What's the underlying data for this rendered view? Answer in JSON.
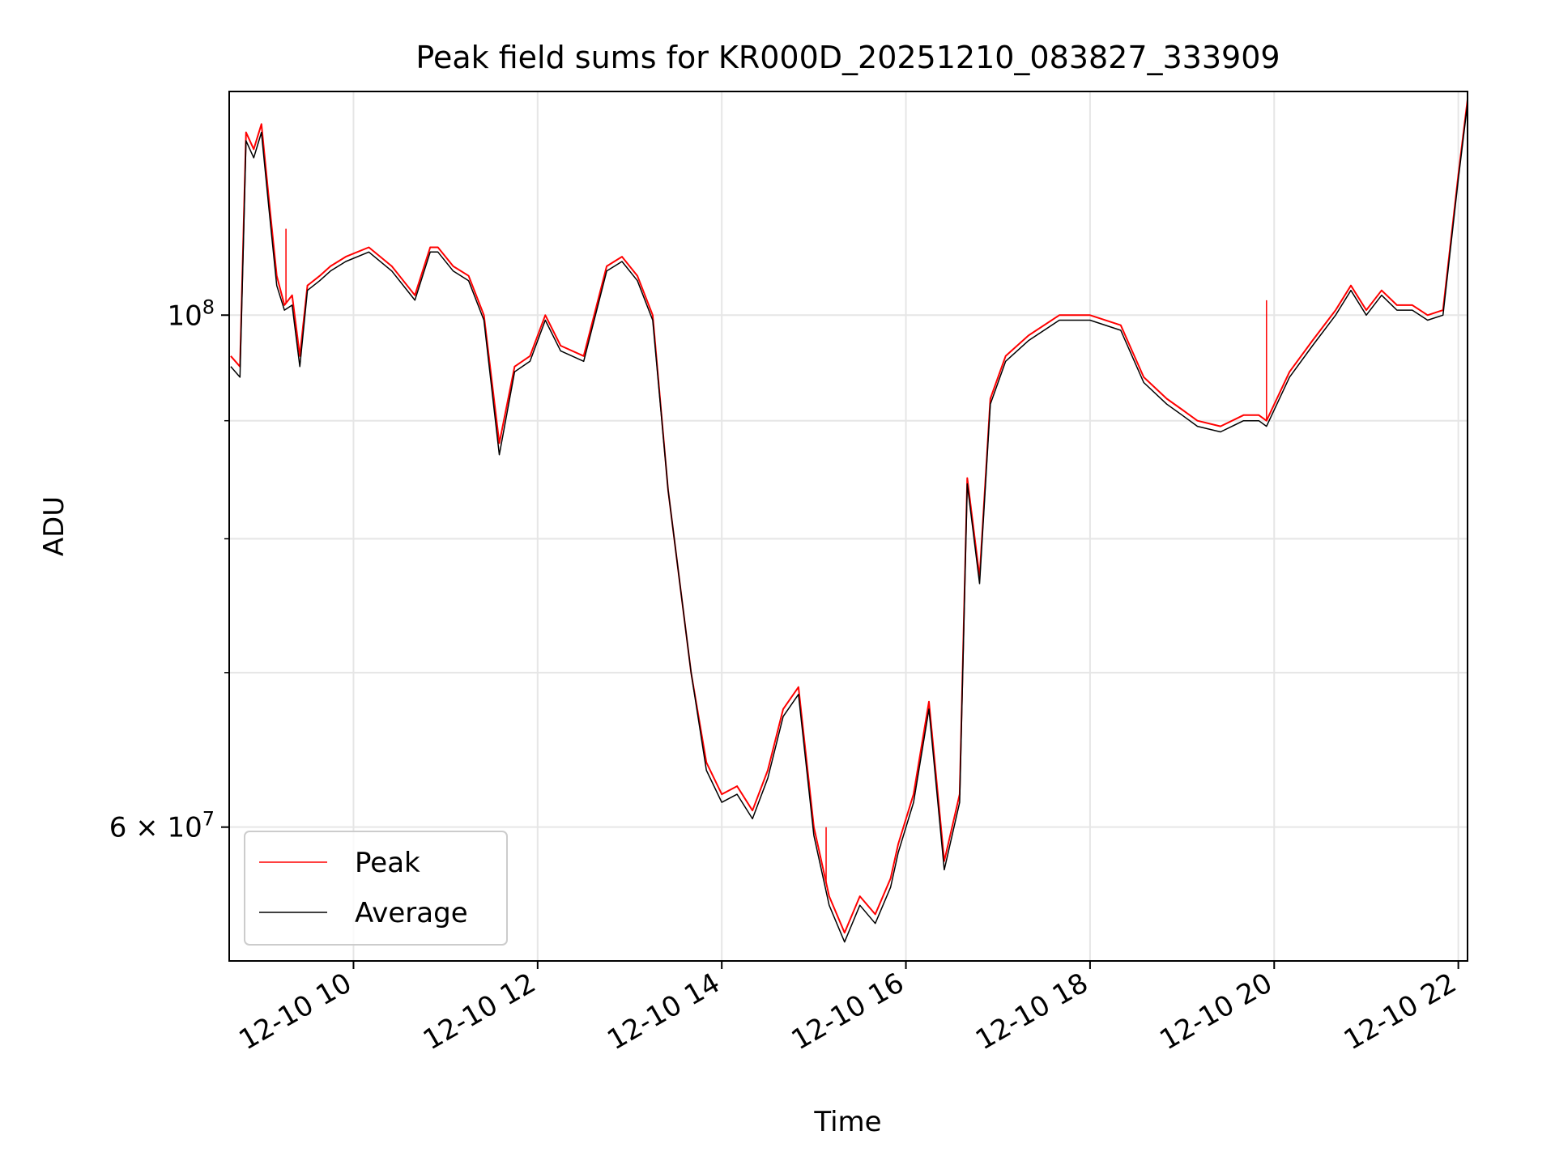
{
  "chart_data": {
    "type": "line",
    "title": "Peak field sums for KR000D_20251210_083827_333909",
    "xlabel": "Time",
    "ylabel": "ADU",
    "xlim": [
      "2025-12-10 08:39",
      "2025-12-10 22:06"
    ],
    "ylim": [
      52500000,
      125000000
    ],
    "yscale": "log",
    "grid": true,
    "legend_position": "lower-left",
    "x_ticks": [
      {
        "value": "2025-12-10 10:00",
        "label": "12-10 10"
      },
      {
        "value": "2025-12-10 12:00",
        "label": "12-10 12"
      },
      {
        "value": "2025-12-10 14:00",
        "label": "12-10 14"
      },
      {
        "value": "2025-12-10 16:00",
        "label": "12-10 16"
      },
      {
        "value": "2025-12-10 18:00",
        "label": "12-10 18"
      },
      {
        "value": "2025-12-10 20:00",
        "label": "12-10 20"
      },
      {
        "value": "2025-12-10 22:00",
        "label": "12-10 22"
      }
    ],
    "y_major_ticks": [
      {
        "value": 60000000,
        "base": "6",
        "exp": "7",
        "label": "6 × 10^7"
      },
      {
        "value": 100000000,
        "base": "10",
        "exp": "8",
        "label": "10^8"
      }
    ],
    "y_minor_ticks": [
      70000000,
      80000000,
      90000000
    ],
    "series": [
      {
        "name": "Peak",
        "color": "#ff0000",
        "x": [
          "2025-12-10 08:40",
          "2025-12-10 08:46",
          "2025-12-10 08:50",
          "2025-12-10 08:55",
          "2025-12-10 09:00",
          "2025-12-10 09:05",
          "2025-12-10 09:10",
          "2025-12-10 09:15",
          "2025-12-10 09:20",
          "2025-12-10 09:25",
          "2025-12-10 09:30",
          "2025-12-10 09:38",
          "2025-12-10 09:45",
          "2025-12-10 09:55",
          "2025-12-10 10:10",
          "2025-12-10 10:25",
          "2025-12-10 10:40",
          "2025-12-10 10:50",
          "2025-12-10 10:55",
          "2025-12-10 11:05",
          "2025-12-10 11:15",
          "2025-12-10 11:25",
          "2025-12-10 11:35",
          "2025-12-10 11:45",
          "2025-12-10 11:55",
          "2025-12-10 12:05",
          "2025-12-10 12:15",
          "2025-12-10 12:30",
          "2025-12-10 12:45",
          "2025-12-10 12:55",
          "2025-12-10 13:05",
          "2025-12-10 13:15",
          "2025-12-10 13:25",
          "2025-12-10 13:40",
          "2025-12-10 13:50",
          "2025-12-10 14:00",
          "2025-12-10 14:10",
          "2025-12-10 14:20",
          "2025-12-10 14:30",
          "2025-12-10 14:40",
          "2025-12-10 14:50",
          "2025-12-10 15:00",
          "2025-12-10 15:10",
          "2025-12-10 15:20",
          "2025-12-10 15:30",
          "2025-12-10 15:40",
          "2025-12-10 15:50",
          "2025-12-10 15:55",
          "2025-12-10 16:05",
          "2025-12-10 16:15",
          "2025-12-10 16:25",
          "2025-12-10 16:35",
          "2025-12-10 16:40",
          "2025-12-10 16:48",
          "2025-12-10 16:55",
          "2025-12-10 17:05",
          "2025-12-10 17:20",
          "2025-12-10 17:40",
          "2025-12-10 18:00",
          "2025-12-10 18:20",
          "2025-12-10 18:35",
          "2025-12-10 18:50",
          "2025-12-10 19:00",
          "2025-12-10 19:10",
          "2025-12-10 19:25",
          "2025-12-10 19:40",
          "2025-12-10 19:50",
          "2025-12-10 19:55",
          "2025-12-10 20:10",
          "2025-12-10 20:25",
          "2025-12-10 20:40",
          "2025-12-10 20:50",
          "2025-12-10 21:00",
          "2025-12-10 21:10",
          "2025-12-10 21:20",
          "2025-12-10 21:30",
          "2025-12-10 21:40",
          "2025-12-10 21:50",
          "2025-12-10 22:00",
          "2025-12-10 22:06"
        ],
        "values": [
          96000000,
          95000000,
          120000000,
          118000000,
          121000000,
          112000000,
          104000000,
          101000000,
          102000000,
          96000000,
          103000000,
          104000000,
          105000000,
          106000000,
          107000000,
          105000000,
          102000000,
          107000000,
          107000000,
          105000000,
          104000000,
          100000000,
          88000000,
          95000000,
          96000000,
          100000000,
          97000000,
          96000000,
          105000000,
          106000000,
          104000000,
          100000000,
          84000000,
          70000000,
          64000000,
          62000000,
          62500000,
          61000000,
          63500000,
          67500000,
          69000000,
          60000000,
          56000000,
          54000000,
          56000000,
          55000000,
          57000000,
          59000000,
          62000000,
          68000000,
          58000000,
          62000000,
          85000000,
          77000000,
          92000000,
          96000000,
          98000000,
          100000000,
          100000000,
          99000000,
          94000000,
          92000000,
          91000000,
          90000000,
          89500000,
          90500000,
          90500000,
          90000000,
          94500000,
          97500000,
          100500000,
          103000000,
          100500000,
          102500000,
          101000000,
          101000000,
          100000000,
          100500000,
          115000000,
          124000000
        ]
      },
      {
        "name": "Average",
        "color": "#000000",
        "x": [
          "2025-12-10 08:40",
          "2025-12-10 08:46",
          "2025-12-10 08:50",
          "2025-12-10 08:55",
          "2025-12-10 09:00",
          "2025-12-10 09:05",
          "2025-12-10 09:10",
          "2025-12-10 09:15",
          "2025-12-10 09:20",
          "2025-12-10 09:25",
          "2025-12-10 09:30",
          "2025-12-10 09:38",
          "2025-12-10 09:45",
          "2025-12-10 09:55",
          "2025-12-10 10:10",
          "2025-12-10 10:25",
          "2025-12-10 10:40",
          "2025-12-10 10:50",
          "2025-12-10 10:55",
          "2025-12-10 11:05",
          "2025-12-10 11:15",
          "2025-12-10 11:25",
          "2025-12-10 11:35",
          "2025-12-10 11:45",
          "2025-12-10 11:55",
          "2025-12-10 12:05",
          "2025-12-10 12:15",
          "2025-12-10 12:30",
          "2025-12-10 12:45",
          "2025-12-10 12:55",
          "2025-12-10 13:05",
          "2025-12-10 13:15",
          "2025-12-10 13:25",
          "2025-12-10 13:40",
          "2025-12-10 13:50",
          "2025-12-10 14:00",
          "2025-12-10 14:10",
          "2025-12-10 14:20",
          "2025-12-10 14:30",
          "2025-12-10 14:40",
          "2025-12-10 14:50",
          "2025-12-10 15:00",
          "2025-12-10 15:10",
          "2025-12-10 15:20",
          "2025-12-10 15:30",
          "2025-12-10 15:40",
          "2025-12-10 15:50",
          "2025-12-10 15:55",
          "2025-12-10 16:05",
          "2025-12-10 16:15",
          "2025-12-10 16:25",
          "2025-12-10 16:35",
          "2025-12-10 16:40",
          "2025-12-10 16:48",
          "2025-12-10 16:55",
          "2025-12-10 17:05",
          "2025-12-10 17:20",
          "2025-12-10 17:40",
          "2025-12-10 18:00",
          "2025-12-10 18:20",
          "2025-12-10 18:35",
          "2025-12-10 18:50",
          "2025-12-10 19:00",
          "2025-12-10 19:10",
          "2025-12-10 19:25",
          "2025-12-10 19:40",
          "2025-12-10 19:50",
          "2025-12-10 19:55",
          "2025-12-10 20:10",
          "2025-12-10 20:25",
          "2025-12-10 20:40",
          "2025-12-10 20:50",
          "2025-12-10 21:00",
          "2025-12-10 21:10",
          "2025-12-10 21:20",
          "2025-12-10 21:30",
          "2025-12-10 21:40",
          "2025-12-10 21:50",
          "2025-12-10 22:00",
          "2025-12-10 22:06"
        ],
        "values": [
          95000000,
          94000000,
          119000000,
          117000000,
          120000000,
          111000000,
          103000000,
          100500000,
          101000000,
          95000000,
          102500000,
          103500000,
          104500000,
          105500000,
          106500000,
          104500000,
          101500000,
          106500000,
          106500000,
          104500000,
          103500000,
          99500000,
          87000000,
          94500000,
          95500000,
          99500000,
          96500000,
          95500000,
          104500000,
          105500000,
          103500000,
          99500000,
          84000000,
          70000000,
          63500000,
          61500000,
          62000000,
          60500000,
          63000000,
          67000000,
          68500000,
          59500000,
          55500000,
          53500000,
          55500000,
          54500000,
          56500000,
          58500000,
          61500000,
          67500000,
          57500000,
          61500000,
          84500000,
          76500000,
          91500000,
          95500000,
          97500000,
          99500000,
          99500000,
          98500000,
          93500000,
          91500000,
          90500000,
          89500000,
          89000000,
          90000000,
          90000000,
          89500000,
          94000000,
          97000000,
          100000000,
          102500000,
          100000000,
          102000000,
          100500000,
          100500000,
          99500000,
          100000000,
          114500000,
          123500000
        ]
      }
    ],
    "annotations_spikes": [
      {
        "series": "Peak",
        "x": "2025-12-10 09:16",
        "value": 109000000
      },
      {
        "series": "Peak",
        "x": "2025-12-10 15:08",
        "value": 60000000
      },
      {
        "series": "Peak",
        "x": "2025-12-10 19:55",
        "value": 101500000
      }
    ]
  }
}
